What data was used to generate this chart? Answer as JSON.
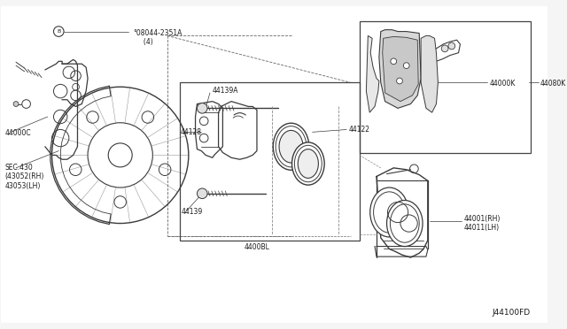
{
  "background_color": "#f0f0f0",
  "line_color": "#3a3a3a",
  "text_color": "#1a1a1a",
  "fig_width": 6.4,
  "fig_height": 3.72,
  "dpi": 100,
  "diagram_code": "J44100FD",
  "labels": {
    "bolt": "°08044-2351A\n     (4)",
    "knuckle": "44000C",
    "sec": "SEC.430\n(43052(RH)\n43053(LH)",
    "pin_a": "44139A",
    "bolt2": "44128",
    "piston": "44122",
    "bolt3": "44139",
    "caliper_asm": "4400BL",
    "caliper_rh": "44001(RH)\n44011(LH)",
    "pad_k": "44000K",
    "pad_set": "44080K"
  }
}
